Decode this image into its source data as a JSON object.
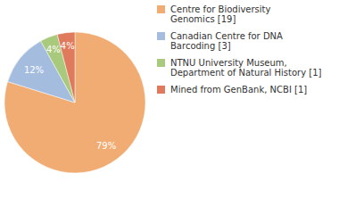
{
  "chart_data": {
    "type": "pie",
    "categories": [
      "Centre for Biodiversity Genomics [19]",
      "Canadian Centre for DNA Barcoding [3]",
      "NTNU University Museum, Department of Natural History [1]",
      "Mined from GenBank, NCBI [1]"
    ],
    "values": [
      79,
      12,
      4,
      4
    ],
    "value_labels": [
      "79%",
      "12%",
      "4%",
      "4%"
    ],
    "colors": [
      "#f0ac72",
      "#a4bddf",
      "#a9c97c",
      "#df7a5c"
    ],
    "data_labels": true,
    "legend": "right"
  }
}
